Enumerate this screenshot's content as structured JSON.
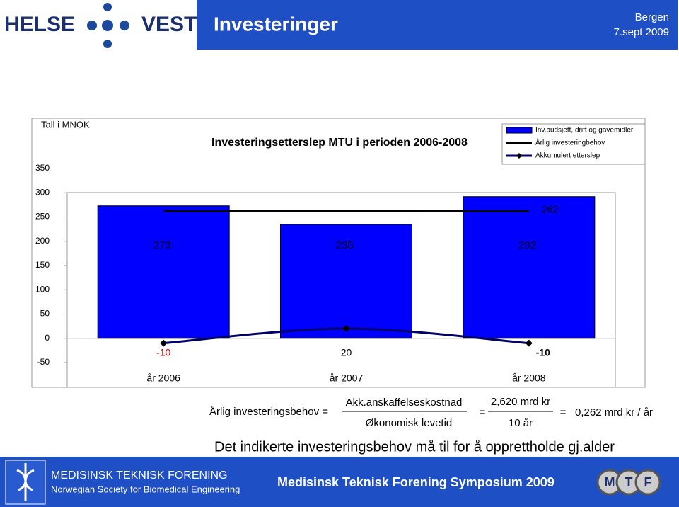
{
  "header": {
    "logo_left": "HELSE",
    "logo_right": "VEST",
    "title": "Investeringer",
    "place": "Bergen",
    "date": "7.sept 2009"
  },
  "chart_data": {
    "type": "bar",
    "title": "Investeringsetterslep MTU i perioden 2006-2008",
    "y_label": "Tall i MNOK",
    "categories": [
      "år 2006",
      "år 2007",
      "år 2008"
    ],
    "series": [
      {
        "name": "Inv.budsjett, drift og gavemidler",
        "type": "bar",
        "color": "#0000ff",
        "values": [
          273,
          235,
          292
        ]
      },
      {
        "name": "Årlig investeringbehov",
        "type": "line",
        "color": "#000000",
        "values": [
          262,
          262,
          262
        ]
      },
      {
        "name": "Akkumulert etterslep",
        "type": "line",
        "color": "#000066",
        "marker": "diamond",
        "values": [
          -10,
          20,
          -10
        ]
      }
    ],
    "ylim": [
      -50,
      350
    ],
    "yticks": [
      -50,
      0,
      50,
      100,
      150,
      200,
      250,
      300,
      350
    ],
    "legend": "top-right"
  },
  "formula": {
    "left": "Årlig investeringsbehov =",
    "numerator1": "Akk.anskaffelseskostnad",
    "denominator1": "Økonomisk levetid",
    "eq1": "=",
    "numerator2": "2,620 mrd kr",
    "denominator2": "10 år",
    "eq2": "=",
    "result": "0,262 mrd kr / år",
    "statement": "Det indikerte investeringsbehov må til for å opprettholde gj.alder"
  },
  "footer": {
    "org": "MEDISINSK TEKNISK FORENING",
    "org_en": "Norwegian Society for Biomedical Engineering",
    "event": "Medisinsk Teknisk Forening Symposium 2009",
    "logo": [
      "M",
      "T",
      "F"
    ]
  }
}
